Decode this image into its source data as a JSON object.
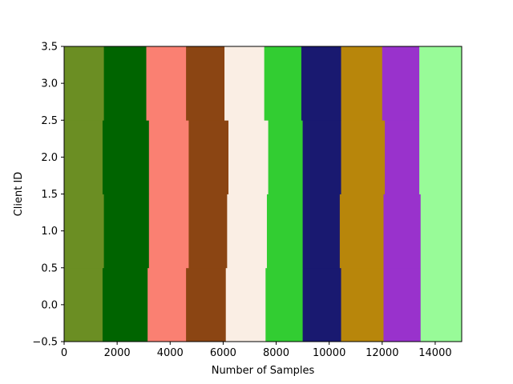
{
  "chart_data": {
    "type": "heatmap",
    "title": "",
    "xlabel": "Number of Samples",
    "ylabel": "Client ID",
    "xlim": [
      0,
      15000
    ],
    "ylim": [
      -0.5,
      3.5
    ],
    "xticks": [
      "0",
      "2000",
      "4000",
      "6000",
      "8000",
      "10000",
      "12000",
      "14000"
    ],
    "yticks": [
      "−0.5",
      "0.0",
      "0.5",
      "1.0",
      "1.5",
      "2.0",
      "2.5",
      "3.0",
      "3.5"
    ],
    "grid": false,
    "class_colors": [
      "#6b8e23",
      "#006400",
      "#fa8072",
      "#8b4513",
      "#faeee4",
      "#32cd32",
      "#191970",
      "#b8860b",
      "#9932cc",
      "#98fb98"
    ],
    "clients": [
      {
        "client_id": 0,
        "boundaries": [
          0,
          1450,
          3150,
          4600,
          6100,
          7600,
          9000,
          10450,
          12050,
          13450,
          15000
        ]
      },
      {
        "client_id": 1,
        "boundaries": [
          0,
          1500,
          3200,
          4700,
          6150,
          7650,
          9000,
          10400,
          12050,
          13450,
          15000
        ]
      },
      {
        "client_id": 2,
        "boundaries": [
          0,
          1450,
          3200,
          4700,
          6200,
          7700,
          9000,
          10450,
          12100,
          13400,
          15000
        ]
      },
      {
        "client_id": 3,
        "boundaries": [
          0,
          1500,
          3100,
          4600,
          6050,
          7550,
          8950,
          10450,
          12000,
          13400,
          15000
        ]
      }
    ]
  }
}
